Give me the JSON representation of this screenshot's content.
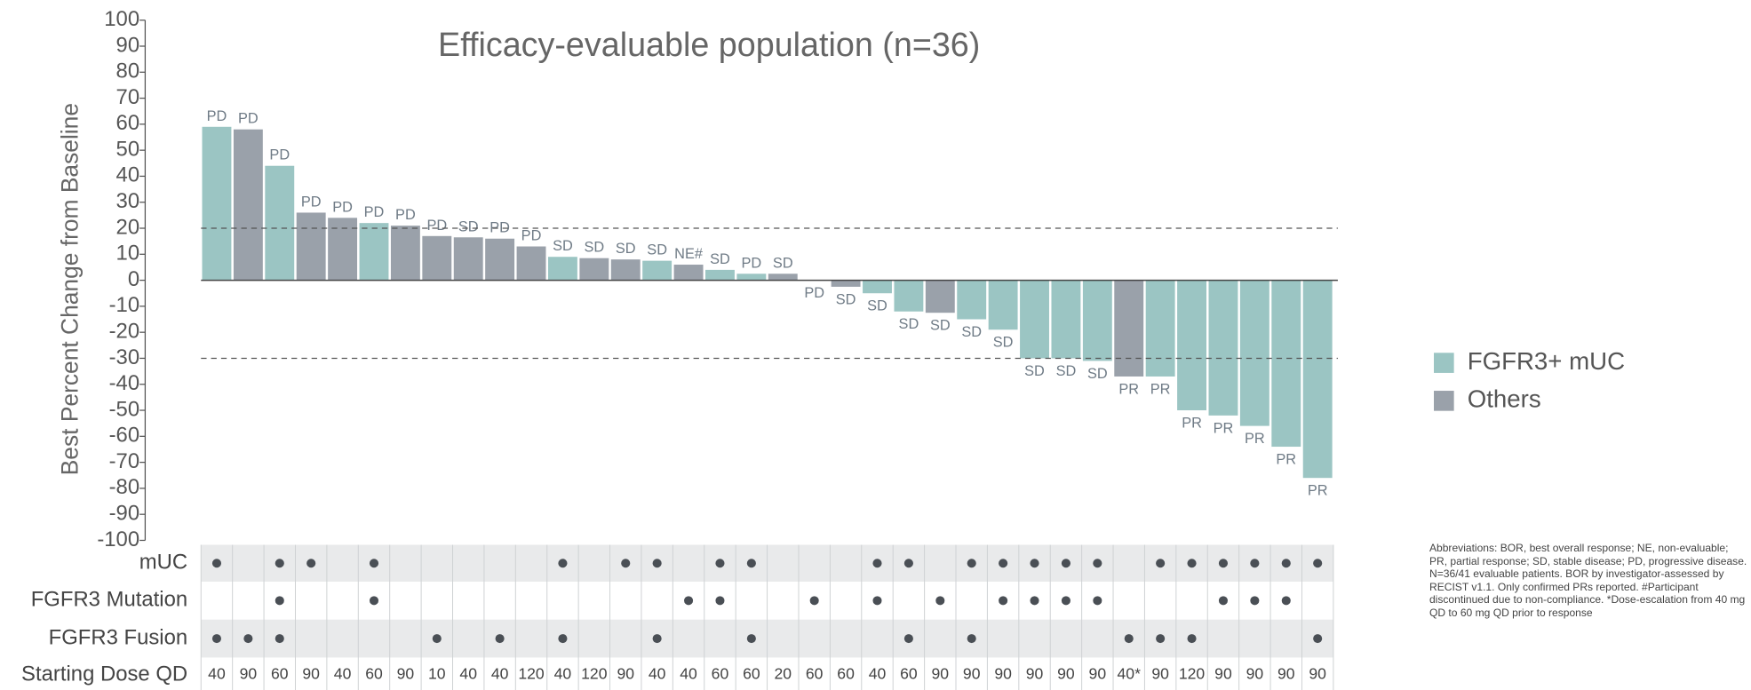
{
  "chart_data": {
    "type": "waterfall",
    "title": "Efficacy-evaluable population (n=36)",
    "y_label": "Best Percent Change from Baseline",
    "ylim": [
      -100,
      100
    ],
    "yticks": [
      100,
      90,
      80,
      70,
      60,
      50,
      40,
      30,
      20,
      10,
      0,
      -10,
      -20,
      -30,
      -40,
      -50,
      -60,
      -70,
      -80,
      -90,
      -100
    ],
    "reference_lines": [
      20,
      -30
    ],
    "series": [
      {
        "name": "FGFR3+ mUC",
        "color": "#9bc5c3"
      },
      {
        "name": "Others",
        "color": "#9aa1aa"
      }
    ],
    "values": [
      59,
      58,
      44,
      26,
      24,
      22,
      21,
      17,
      16.5,
      16,
      13,
      9,
      8.5,
      8,
      7.5,
      6,
      4,
      2.5,
      2.5,
      0,
      -2.5,
      -5,
      -12,
      -12.5,
      -15,
      -19,
      -30,
      -30,
      -31,
      -37,
      -37,
      -50,
      -52,
      -56,
      -64,
      -76
    ],
    "groups": [
      0,
      1,
      0,
      1,
      1,
      0,
      1,
      1,
      1,
      1,
      1,
      0,
      1,
      1,
      0,
      1,
      0,
      0,
      1,
      1,
      1,
      0,
      0,
      1,
      0,
      0,
      0,
      0,
      0,
      1,
      0,
      0,
      0,
      0,
      0,
      0
    ],
    "responses": [
      "PD",
      "PD",
      "PD",
      "PD",
      "PD",
      "PD",
      "PD",
      "PD",
      "SD",
      "PD",
      "PD",
      "SD",
      "SD",
      "SD",
      "SD",
      "NE#",
      "SD",
      "PD",
      "SD",
      "PD",
      "SD",
      "SD",
      "SD",
      "SD",
      "SD",
      "SD",
      "SD",
      "SD",
      "SD",
      "PR",
      "PR",
      "PR",
      "PR",
      "PR",
      "PR",
      "PR"
    ],
    "table": {
      "rows": [
        {
          "label": "mUC",
          "dots": [
            1,
            0,
            1,
            1,
            0,
            1,
            0,
            0,
            0,
            0,
            0,
            1,
            0,
            1,
            1,
            0,
            1,
            1,
            0,
            0,
            0,
            1,
            1,
            0,
            1,
            1,
            1,
            1,
            1,
            0,
            1,
            1,
            1,
            1,
            1,
            1
          ]
        },
        {
          "label": "FGFR3 Mutation",
          "dots": [
            0,
            0,
            1,
            0,
            0,
            1,
            0,
            0,
            0,
            0,
            0,
            0,
            0,
            0,
            0,
            1,
            1,
            0,
            0,
            1,
            0,
            1,
            0,
            1,
            0,
            1,
            1,
            1,
            1,
            0,
            0,
            0,
            1,
            1,
            1,
            0
          ]
        },
        {
          "label": "FGFR3 Fusion",
          "dots": [
            1,
            1,
            1,
            0,
            0,
            0,
            0,
            1,
            0,
            1,
            0,
            1,
            0,
            0,
            1,
            0,
            0,
            1,
            0,
            0,
            0,
            0,
            1,
            0,
            1,
            0,
            0,
            0,
            0,
            1,
            1,
            1,
            0,
            0,
            0,
            1
          ]
        }
      ],
      "dose_label": "Starting Dose QD",
      "doses": [
        40,
        90,
        60,
        90,
        40,
        60,
        90,
        10,
        40,
        40,
        120,
        40,
        120,
        90,
        40,
        40,
        60,
        60,
        20,
        60,
        60,
        40,
        60,
        90,
        90,
        90,
        90,
        90,
        90,
        "40*",
        90,
        120,
        90,
        90,
        90,
        90
      ]
    },
    "footnote": "Abbreviations: BOR, best overall response; NE, non-evaluable; PR, partial response; SD, stable disease; PD, progressive disease. N=36/41 evaluable patients. BOR by investigator-assessed by RECIST v1.1. Only confirmed PRs reported. #Participant discontinued due to non-compliance. *Dose-escalation from 40 mg QD to 60 mg QD prior to response"
  }
}
